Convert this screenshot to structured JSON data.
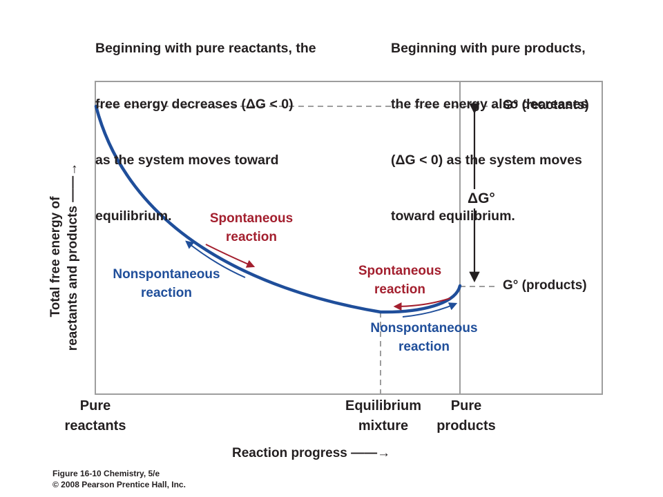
{
  "captions": {
    "left": [
      "Beginning with pure reactants, the",
      "free energy decreases (ΔG < 0)",
      "as the system moves toward",
      "equilibrium."
    ],
    "right": [
      "Beginning with pure products,",
      "the free energy also decreases",
      "(ΔG < 0) as the system moves",
      "toward equilibrium."
    ]
  },
  "axes": {
    "y_title": [
      "Total free energy of",
      "reactants and products ——→"
    ],
    "x_title": "Reaction progress ——→",
    "x_labels": {
      "pure_reactants": [
        "Pure",
        "reactants"
      ],
      "equilibrium": [
        "Equilibrium",
        "mixture"
      ],
      "pure_products": [
        "Pure",
        "products"
      ]
    }
  },
  "levels": {
    "reactants": "G° (reactants)",
    "products": "G° (products)",
    "delta": "ΔG°"
  },
  "annotations": {
    "spontaneous_left": [
      "Spontaneous",
      "reaction"
    ],
    "nonspontaneous_left": [
      "Nonspontaneous",
      "reaction"
    ],
    "spontaneous_right": [
      "Spontaneous",
      "reaction"
    ],
    "nonspontaneous_right": [
      "Nonspontaneous",
      "reaction"
    ]
  },
  "credit": [
    "Figure 16-10  Chemistry, 5/e",
    "© 2008 Pearson Prentice Hall, Inc."
  ],
  "colors": {
    "curve": "#1f4e9a",
    "spontaneous": "#a31f2e",
    "nonspontaneous": "#1f4e9a",
    "frame": "#9d9d9d",
    "text": "#231f20"
  }
}
